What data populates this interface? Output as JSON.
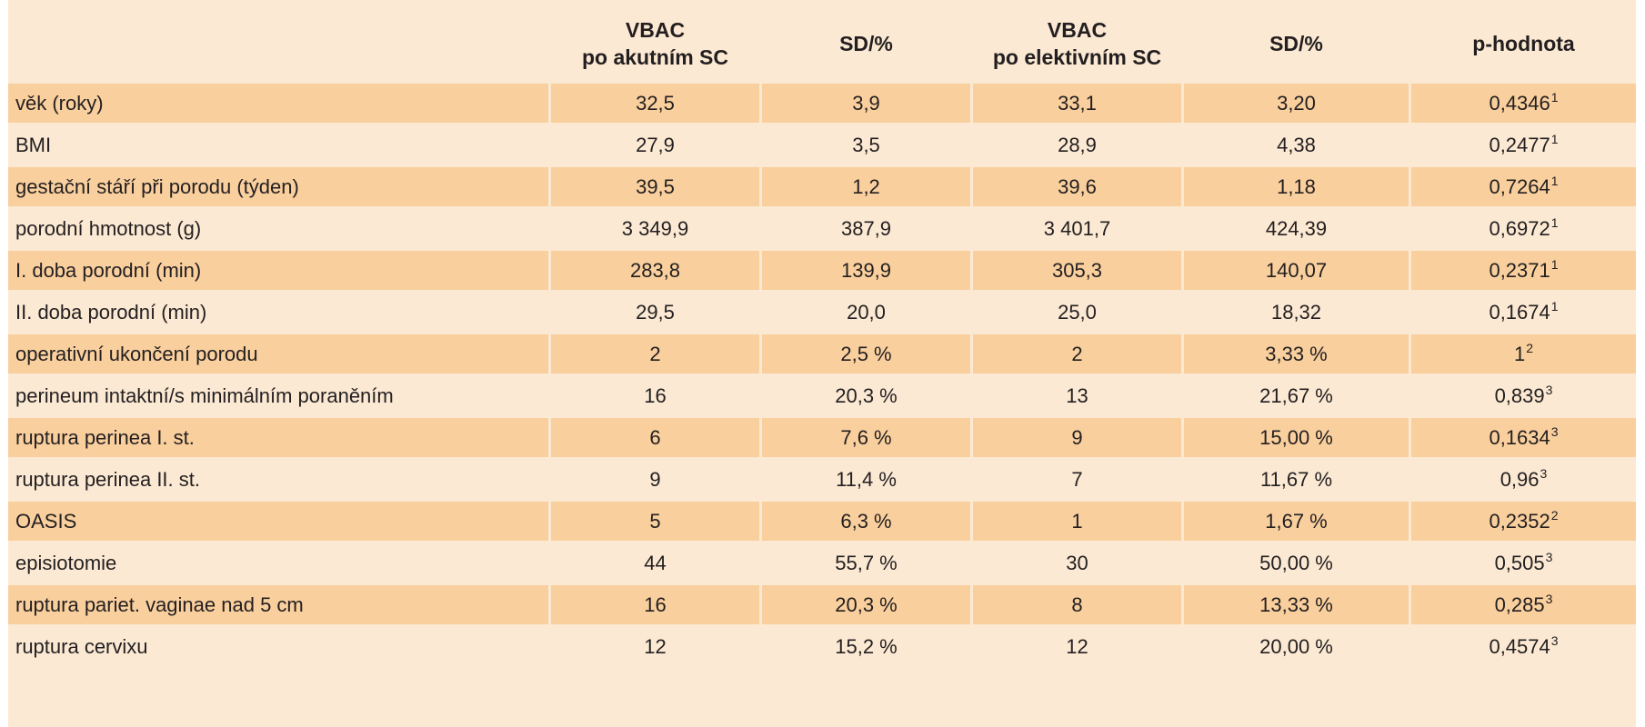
{
  "headers": [
    "",
    "VBAC\npo akutním SC",
    "SD/%",
    "VBAC\npo elektivním SC",
    "SD/%",
    "p-hodnota"
  ],
  "header_lines": {
    "c1": [
      "VBAC",
      "po akutním SC"
    ],
    "c3": [
      "VBAC",
      "po elektivním SC"
    ]
  },
  "rows": [
    {
      "label": "věk (roky)",
      "a": "32,5",
      "a_sd": "3,9",
      "e": "33,1",
      "e_sd": "3,20",
      "p": "0,4346",
      "p_ref": "1"
    },
    {
      "label": "BMI",
      "a": "27,9",
      "a_sd": "3,5",
      "e": "28,9",
      "e_sd": "4,38",
      "p": "0,2477",
      "p_ref": "1"
    },
    {
      "label": "gestační stáří při porodu (týden)",
      "a": "39,5",
      "a_sd": "1,2",
      "e": "39,6",
      "e_sd": "1,18",
      "p": "0,7264",
      "p_ref": "1"
    },
    {
      "label": "porodní hmotnost (g)",
      "a": "3 349,9",
      "a_sd": "387,9",
      "e": "3 401,7",
      "e_sd": "424,39",
      "p": "0,6972",
      "p_ref": "1"
    },
    {
      "label": "I. doba porodní (min)",
      "a": "283,8",
      "a_sd": "139,9",
      "e": "305,3",
      "e_sd": "140,07",
      "p": "0,2371",
      "p_ref": "1"
    },
    {
      "label": "II. doba porodní  (min)",
      "a": "29,5",
      "a_sd": "20,0",
      "e": "25,0",
      "e_sd": "18,32",
      "p": "0,1674",
      "p_ref": "1"
    },
    {
      "label": "operativní ukončení porodu",
      "a": "2",
      "a_sd": "2,5 %",
      "e": "2",
      "e_sd": "3,33 %",
      "p": "1",
      "p_ref": "2"
    },
    {
      "label": "perineum intaktní/s minimálním poraněním",
      "a": "16",
      "a_sd": "20,3 %",
      "e": "13",
      "e_sd": "21,67 %",
      "p": "0,839",
      "p_ref": "3"
    },
    {
      "label": "ruptura perinea I. st.",
      "a": "6",
      "a_sd": "7,6 %",
      "e": "9",
      "e_sd": "15,00 %",
      "p": "0,1634",
      "p_ref": "3"
    },
    {
      "label": "ruptura perinea II. st.",
      "a": "9",
      "a_sd": "11,4 %",
      "e": "7",
      "e_sd": "11,67 %",
      "p": "0,96",
      "p_ref": "3"
    },
    {
      "label": "OASIS",
      "a": "5",
      "a_sd": "6,3 %",
      "e": "1",
      "e_sd": "1,67 %",
      "p": "0,2352",
      "p_ref": "2"
    },
    {
      "label": "episiotomie",
      "a": "44",
      "a_sd": "55,7 %",
      "e": "30",
      "e_sd": "50,00 %",
      "p": "0,505",
      "p_ref": "3"
    },
    {
      "label": "ruptura pariet. vaginae nad 5 cm",
      "a": "16",
      "a_sd": "20,3 %",
      "e": "8",
      "e_sd": "13,33 %",
      "p": "0,285",
      "p_ref": "3"
    },
    {
      "label": "ruptura cervixu",
      "a": "12",
      "a_sd": "15,2 %",
      "e": "12",
      "e_sd": "20,00 %",
      "p": "0,4574",
      "p_ref": "3"
    }
  ],
  "colors": {
    "band_dark": "#f9cf9d",
    "band_light": "#fbe9d3",
    "text": "#231f20"
  }
}
